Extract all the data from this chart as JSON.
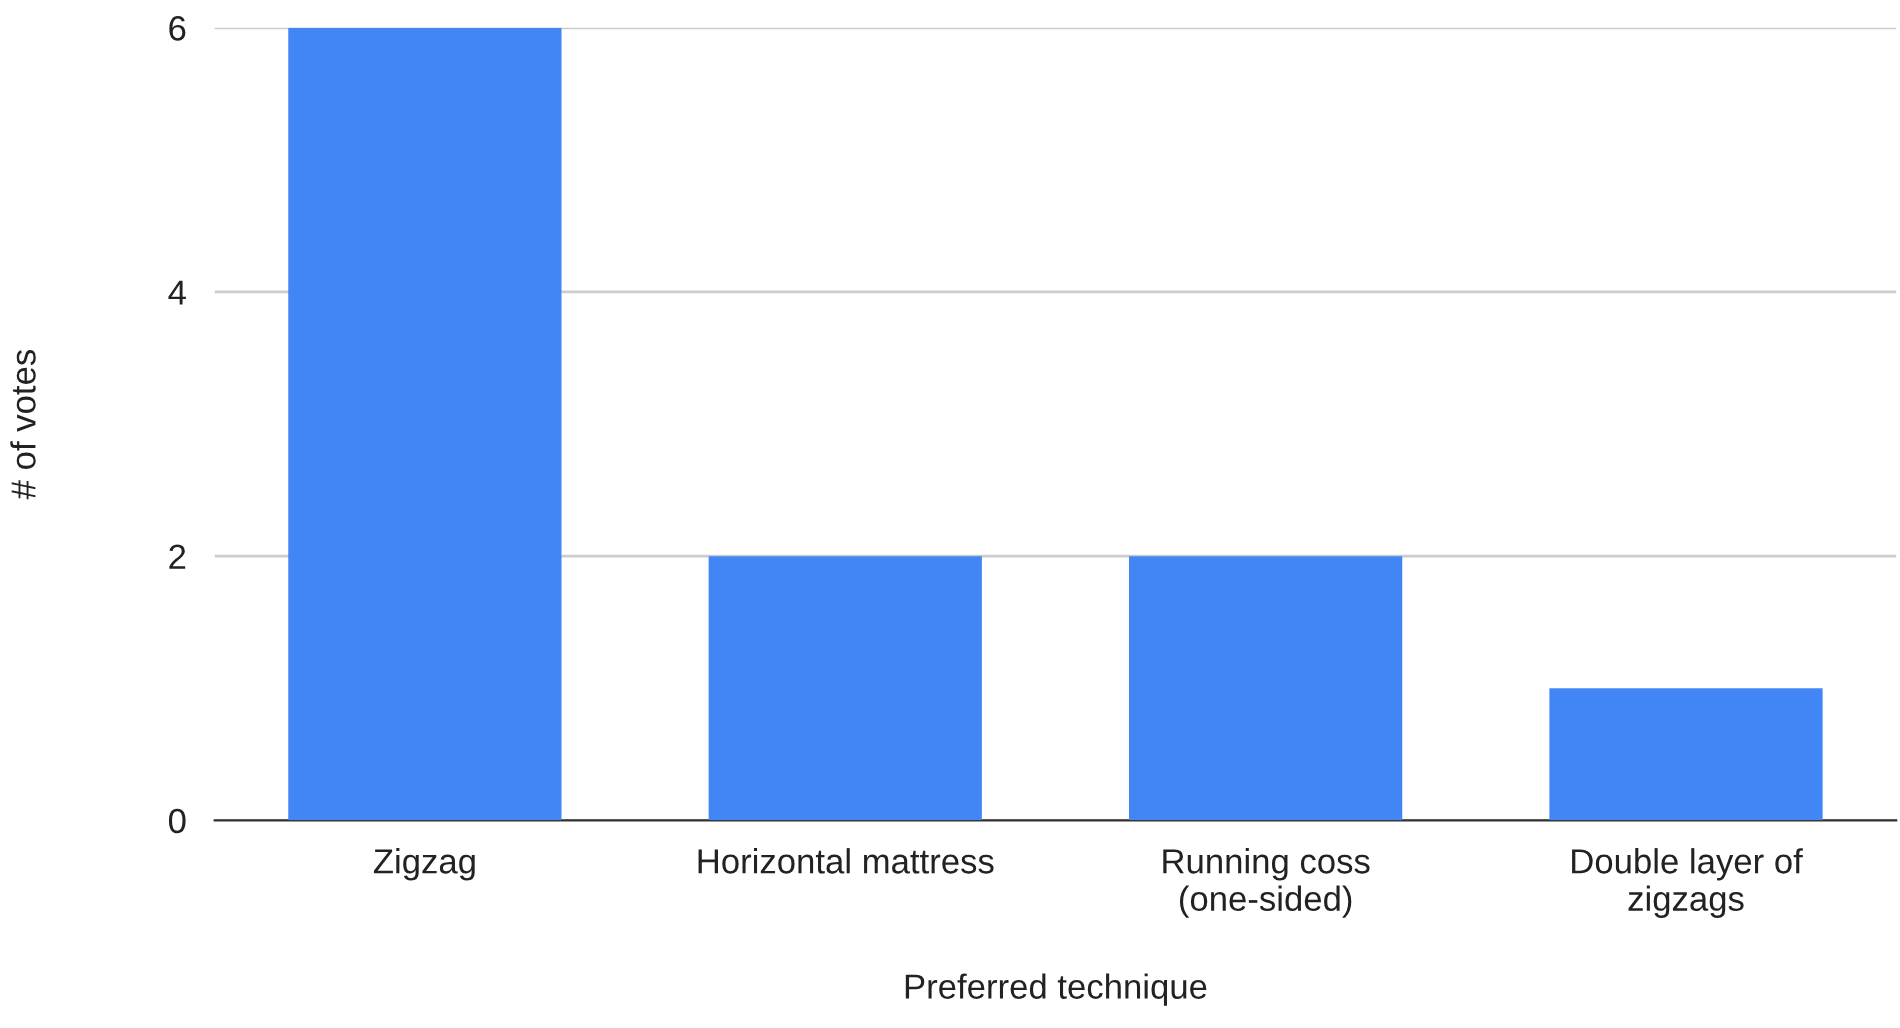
{
  "chart_data": {
    "type": "bar",
    "xlabel": "Preferred technique",
    "ylabel": "# of votes",
    "categories": [
      "Zigzag",
      "Horizontal mattress",
      "Running coss\n(one-sided)",
      "Double layer of\nzigzags"
    ],
    "values": [
      6,
      2,
      2,
      1
    ],
    "color": "#4285f4",
    "ylim": [
      0,
      6
    ],
    "yticks": [
      0,
      2,
      4,
      6
    ],
    "grid": "y",
    "legend": false
  }
}
